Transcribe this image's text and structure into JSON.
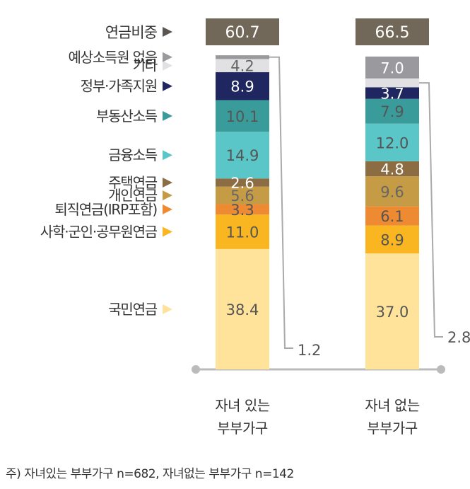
{
  "chart_data": {
    "type": "bar",
    "stacked": true,
    "categories": [
      "자녀 있는\n부부가구",
      "자녀 없는\n부부가구"
    ],
    "pension_share_label": "연금비중",
    "pension_share": [
      "60.7",
      "66.5"
    ],
    "series": [
      {
        "name": "국민연금",
        "color": "#FFE39A",
        "text_color": "#555555",
        "values": [
          38.4,
          37.0
        ],
        "labels": [
          "38.4",
          "37.0"
        ]
      },
      {
        "name": "사학·군인·공무원연금",
        "color": "#F9B620",
        "text_color": "#555555",
        "values": [
          11.0,
          8.9
        ],
        "labels": [
          "11.0",
          "8.9"
        ]
      },
      {
        "name": "퇴직연금(IRP포함)",
        "color": "#EE8A32",
        "text_color": "#555555",
        "values": [
          3.3,
          6.1
        ],
        "labels": [
          "3.3",
          "6.1"
        ]
      },
      {
        "name": "개인연금",
        "color": "#C69B45",
        "text_color": "#666666",
        "values": [
          5.6,
          9.6
        ],
        "labels": [
          "5.6",
          "9.6"
        ]
      },
      {
        "name": "주택연금",
        "color": "#8C6D43",
        "text_color": "#ffffff",
        "values": [
          2.6,
          4.8
        ],
        "labels": [
          "2.6",
          "4.8"
        ]
      },
      {
        "name": "금융소득",
        "color": "#5BC6C7",
        "text_color": "#555555",
        "values": [
          14.9,
          12.0
        ],
        "labels": [
          "14.9",
          "12.0"
        ]
      },
      {
        "name": "부동산소득",
        "color": "#3A9C9A",
        "text_color": "#555555",
        "values": [
          10.1,
          7.9
        ],
        "labels": [
          "10.1",
          "7.9"
        ]
      },
      {
        "name": "정부·가족지원",
        "color": "#1F2660",
        "text_color": "#ffffff",
        "values": [
          8.9,
          3.7
        ],
        "labels": [
          "8.9",
          "3.7"
        ]
      },
      {
        "name": "기타",
        "color": "#E1E1E3",
        "text_color": "#666666",
        "values": [
          4.2,
          2.8
        ],
        "labels": [
          "4.2",
          "2.8"
        ]
      },
      {
        "name": "예상소득원 없음",
        "color": "#9A9A9E",
        "text_color": "#ffffff",
        "values": [
          1.2,
          7.0
        ],
        "labels": [
          "1.2",
          "7.0"
        ]
      }
    ],
    "ylim": [
      0,
      100
    ]
  },
  "footnote": "주) 자녀있는 부부가구 n=682, 자녀없는 부부가구 n=142"
}
